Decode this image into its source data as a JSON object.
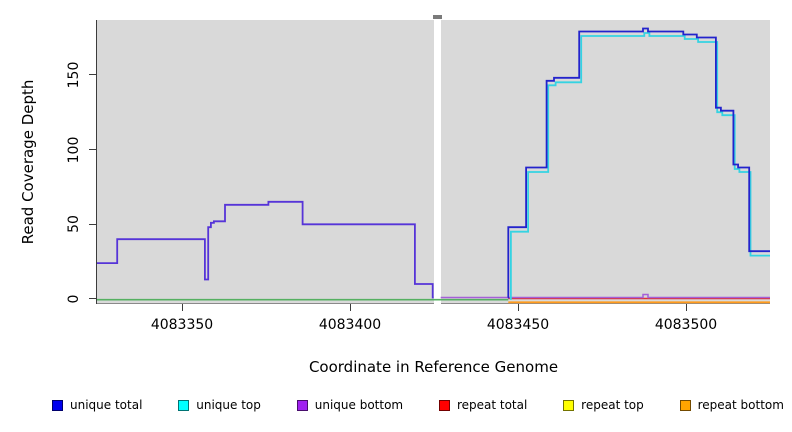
{
  "figure": {
    "background": "#ffffff",
    "plot_background": "#d9d9d9",
    "axis_color": "#3c3c3c"
  },
  "axes": {
    "y_label": "Read Coverage Depth",
    "x_label": "Coordinate in Reference Genome"
  },
  "legend": [
    {
      "label": "unique total",
      "color": "#0000ee"
    },
    {
      "label": "unique top",
      "color": "#00ffff"
    },
    {
      "label": "unique bottom",
      "color": "#a020f0"
    },
    {
      "label": "repeat total",
      "color": "#ff0000"
    },
    {
      "label": "repeat top",
      "color": "#ffff00"
    },
    {
      "label": "repeat bottom",
      "color": "#ffa500"
    }
  ],
  "chart_data": {
    "type": "line",
    "subtype": "step-after-coverage",
    "title": "",
    "xlabel": "Coordinate in Reference Genome",
    "ylabel": "Read Coverage Depth",
    "xlim": [
      4083324.7,
      4083525.0
    ],
    "ylim": [
      -2.7,
      186.7
    ],
    "x_ticks": [
      4083350,
      4083400,
      4083450,
      4083500
    ],
    "y_ticks": [
      0,
      50,
      100,
      150
    ],
    "grid": false,
    "legend_position": "bottom",
    "gap": {
      "from": 4083424.9,
      "to": 4083427.0
    },
    "series": [
      {
        "name": "zero-baseline-left (green)",
        "color": "#55b061",
        "width": 1.6,
        "points": [
          [
            4083324.7,
            -0.5
          ]
        ],
        "end": 4083447.1
      },
      {
        "name": "repeat total",
        "color": "#e03030",
        "width": 1.4,
        "points": [
          [
            4083447.1,
            0.3
          ]
        ],
        "end": 4083525.0
      },
      {
        "name": "repeat bottom",
        "color": "#ff9a1c",
        "width": 1.8,
        "points": [
          [
            4083447.1,
            -2.2
          ]
        ],
        "end": 4083525.0
      },
      {
        "name": "unique bottom (right)",
        "color": "#a45fd8",
        "width": 1.5,
        "points": [
          [
            4083427.0,
            1
          ],
          [
            4083487.2,
            3
          ],
          [
            4083488.7,
            1
          ]
        ],
        "end": 4083525.0
      },
      {
        "name": "unique top",
        "color": "#35d3e2",
        "width": 1.8,
        "points": [
          [
            4083447.6,
            0
          ],
          [
            4083447.9,
            45
          ],
          [
            4083453.0,
            85
          ],
          [
            4083459.0,
            143
          ],
          [
            4083461.2,
            145
          ],
          [
            4083468.8,
            176
          ],
          [
            4083487.6,
            178
          ],
          [
            4083489.1,
            176
          ],
          [
            4083499.6,
            174
          ],
          [
            4083503.6,
            172
          ],
          [
            4083509.3,
            125
          ],
          [
            4083510.8,
            123
          ],
          [
            4083514.5,
            87
          ],
          [
            4083515.9,
            85
          ],
          [
            4083519.2,
            29
          ]
        ],
        "end": 4083525.0
      },
      {
        "name": "unique total",
        "color": "#2323cc",
        "width": 1.8,
        "points": [
          [
            4083447.0,
            1
          ],
          [
            4083447.1,
            48
          ],
          [
            4083452.4,
            88
          ],
          [
            4083458.5,
            146
          ],
          [
            4083460.7,
            148
          ],
          [
            4083468.2,
            179
          ],
          [
            4083487.2,
            181
          ],
          [
            4083488.7,
            179
          ],
          [
            4083499.2,
            177
          ],
          [
            4083503.2,
            175
          ],
          [
            4083508.9,
            128
          ],
          [
            4083510.4,
            126
          ],
          [
            4083514.1,
            90
          ],
          [
            4083515.5,
            88
          ],
          [
            4083518.8,
            32
          ]
        ],
        "end": 4083525.0
      },
      {
        "name": "unique bottom+total (left)",
        "color": "#5634d8",
        "width": 1.8,
        "points": [
          [
            4083324.7,
            24
          ],
          [
            4083330.7,
            40
          ],
          [
            4083356.8,
            13
          ],
          [
            4083357.8,
            48
          ],
          [
            4083358.6,
            51
          ],
          [
            4083359.5,
            52
          ],
          [
            4083362.8,
            63
          ],
          [
            4083375.7,
            65
          ],
          [
            4083385.9,
            50
          ],
          [
            4083419.3,
            10
          ],
          [
            4083424.6,
            1
          ]
        ],
        "end": 4083424.9
      }
    ]
  }
}
